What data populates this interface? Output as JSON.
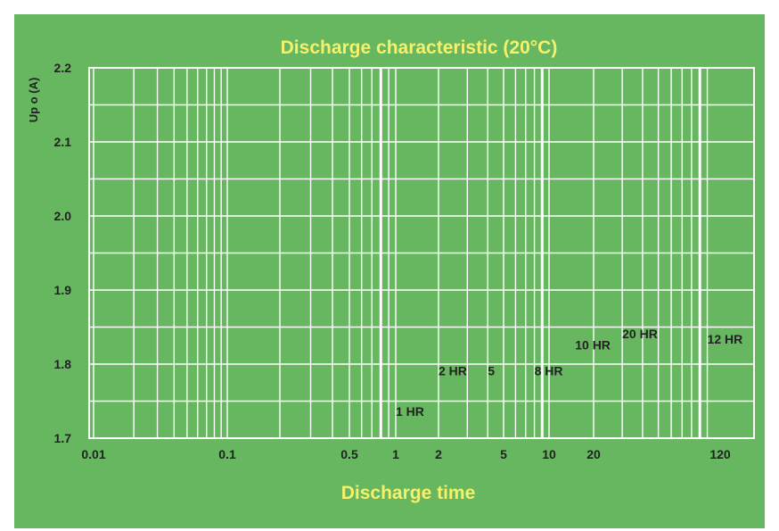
{
  "chart_data": {
    "type": "line",
    "title": "Discharge characteristic (20°C)",
    "xlabel": "Discharge time",
    "ylabel": "Up o (A)",
    "x_scale": "log",
    "xlim": [
      0.01,
      200
    ],
    "ylim": [
      1.7,
      2.2
    ],
    "grid": true,
    "background_color": "#66b75f",
    "panel_color": "#66bb60",
    "grid_color": "#ffffff",
    "title_color": "#f7f06a",
    "text_color": "#222222",
    "x_ticks": [
      {
        "label": "0.01",
        "value": 0.01
      },
      {
        "label": "0.1",
        "value": 0.1
      },
      {
        "label": "0.5",
        "value": 0.5
      },
      {
        "label": "1",
        "value": 1
      },
      {
        "label": "2",
        "value": 2
      },
      {
        "label": "5",
        "value": 5
      },
      {
        "label": "10",
        "value": 10
      },
      {
        "label": "20",
        "value": 20
      },
      {
        "label": "120",
        "value": 120
      }
    ],
    "y_ticks": [
      {
        "label": "1.7",
        "value": 1.7
      },
      {
        "label": "1.8",
        "value": 1.8
      },
      {
        "label": "1.9",
        "value": 1.9
      },
      {
        "label": "2.0",
        "value": 2.0
      },
      {
        "label": "2.1",
        "value": 2.1
      },
      {
        "label": "2.2",
        "value": 2.2
      }
    ],
    "annotations": [
      {
        "text": "1 HR",
        "x": 1.0,
        "y": 1.73
      },
      {
        "text": "2 HR",
        "x": 2.0,
        "y": 1.785
      },
      {
        "text": "5",
        "x": 4.0,
        "y": 1.785
      },
      {
        "text": "8 HR",
        "x": 8.0,
        "y": 1.785
      },
      {
        "text": "10 HR",
        "x": 15.0,
        "y": 1.82
      },
      {
        "text": "20 HR",
        "x": 30.0,
        "y": 1.835
      },
      {
        "text": "12   HR",
        "x": 100.0,
        "y": 1.828
      }
    ]
  }
}
